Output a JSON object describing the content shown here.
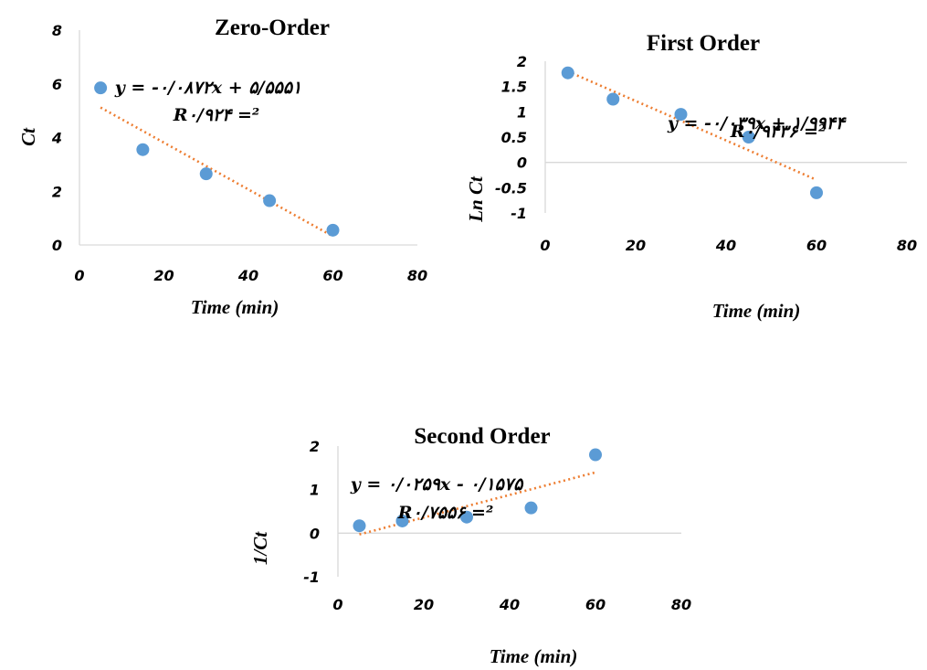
{
  "chart_data": [
    {
      "type": "scatter",
      "title": "Zero-Order",
      "xlabel": "Time (min)",
      "ylabel": "Ct",
      "xlim": [
        0,
        80
      ],
      "ylim": [
        0,
        8
      ],
      "xticks": [
        "0",
        "20",
        "40",
        "60",
        "80"
      ],
      "yticks": [
        "0",
        "2",
        "4",
        "6",
        "8"
      ],
      "x": [
        5,
        15,
        30,
        45,
        60
      ],
      "y": [
        5.85,
        3.55,
        2.65,
        1.65,
        0.55
      ],
      "trendline": {
        "slope": -0.0872,
        "intercept": 5.5551
      },
      "equation": "y = -۰/۰۸۷۲x + ۵/۵۵۵۱",
      "r_squared": "R۰/۹۲۴ =²",
      "grid": false
    },
    {
      "type": "scatter",
      "title": "First Order",
      "xlabel": "Time (min)",
      "ylabel": "Ln Ct",
      "xlim": [
        0,
        80
      ],
      "ylim": [
        -1,
        2
      ],
      "xticks": [
        "0",
        "20",
        "40",
        "60",
        "80"
      ],
      "yticks": [
        "2",
        "1.5",
        "1",
        "0.5",
        "0",
        "-0.5",
        "-1"
      ],
      "x": [
        5,
        15,
        30,
        45,
        60
      ],
      "y": [
        1.77,
        1.25,
        0.95,
        0.5,
        -0.6
      ],
      "trendline": {
        "slope": -0.039,
        "intercept": 1.9944
      },
      "equation": "y = -۰/۰۳۹x + ۱/۹۹۴۴",
      "r_squared": "R۰/۹۴۳۶ =²",
      "grid": false
    },
    {
      "type": "scatter",
      "title": "Second Order",
      "xlabel": "Time (min)",
      "ylabel": "1/Ct",
      "xlim": [
        0,
        80
      ],
      "ylim": [
        -1,
        2
      ],
      "xticks": [
        "0",
        "20",
        "40",
        "60",
        "80"
      ],
      "yticks": [
        "2",
        "1",
        "0",
        "-1"
      ],
      "x": [
        5,
        15,
        30,
        45,
        60
      ],
      "y": [
        0.17,
        0.28,
        0.37,
        0.58,
        1.8
      ],
      "trendline": {
        "slope": 0.0259,
        "intercept": -0.1575
      },
      "equation": "y = ۰/۰۲۵۹x - ۰/۱۵۷۵",
      "r_squared": "R۰/۷۵۵۶ =²",
      "grid": false
    }
  ]
}
